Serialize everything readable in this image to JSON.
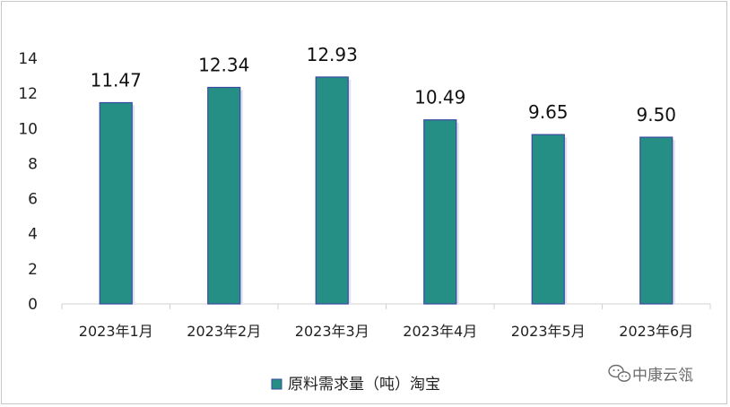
{
  "chart_data": {
    "type": "bar",
    "categories": [
      "2023年1月",
      "2023年2月",
      "2023年3月",
      "2023年4月",
      "2023年5月",
      "2023年6月"
    ],
    "series": [
      {
        "name": "原料需求量（吨）淘宝",
        "values": [
          11.47,
          12.34,
          12.93,
          10.49,
          9.65,
          9.5
        ]
      }
    ],
    "value_labels": [
      "11.47",
      "12.34",
      "12.93",
      "10.49",
      "9.65",
      "9.50"
    ],
    "yticks": [
      "0",
      "2",
      "4",
      "6",
      "8",
      "10",
      "12",
      "14"
    ],
    "ylim": [
      0,
      14
    ],
    "grid": false,
    "legend_position": "bottom-center",
    "bar_color": "#258f85",
    "bar_edge_color": "#3b4aa0"
  },
  "watermark": {
    "text": "中康云瓴",
    "icon": "wechat-icon"
  }
}
